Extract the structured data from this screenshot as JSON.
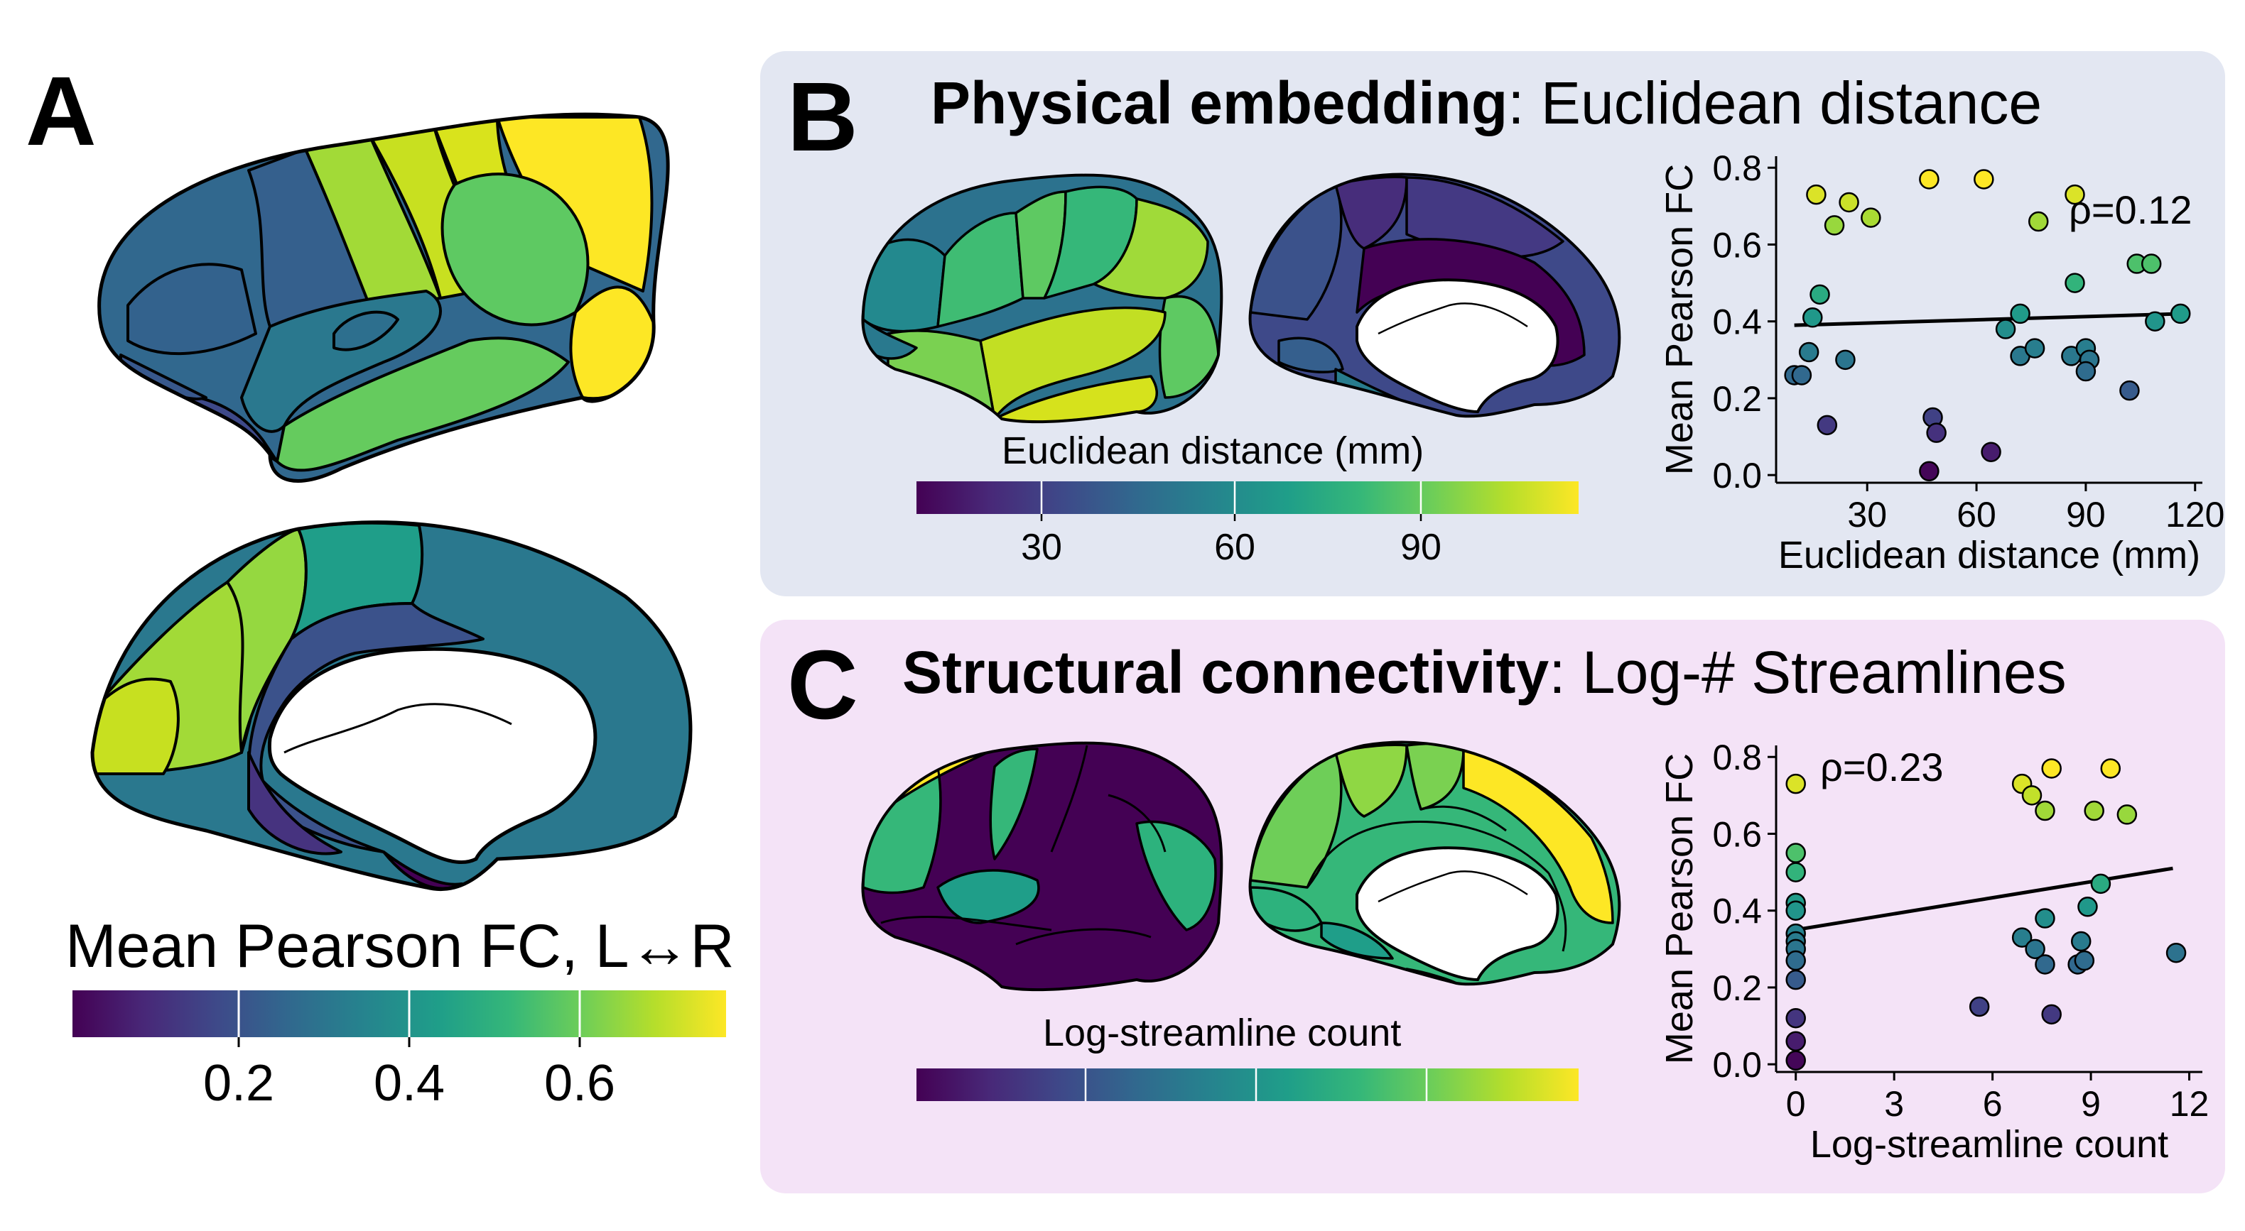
{
  "figure": {
    "panel_a": {
      "letter": "A",
      "colorbar_label": "Mean Pearson FC, L↔R",
      "colorbar_ticks": [
        "0.2",
        "0.4",
        "0.6"
      ]
    },
    "panel_b": {
      "letter": "B",
      "title_bold": "Physical embedding",
      "title_rest": ": Euclidean distance",
      "colorbar_label": "Euclidean distance (mm)",
      "colorbar_ticks": [
        "30",
        "60",
        "90"
      ]
    },
    "panel_c": {
      "letter": "C",
      "title_bold": "Structural connectivity",
      "title_rest": ": Log-# Streamlines",
      "colorbar_label": "Log-streamline count"
    },
    "colors": {
      "panel_b_bg": "#e3e7f2",
      "panel_c_bg": "#f4e3f7",
      "viridis": [
        "#440154",
        "#482878",
        "#3e4989",
        "#31688e",
        "#26828e",
        "#1f9e89",
        "#35b779",
        "#6ece58",
        "#b5de2b",
        "#fde725"
      ]
    }
  },
  "chart_data": [
    {
      "type": "scatter",
      "panel": "B",
      "xlabel": "Euclidean distance (mm)",
      "ylabel": "Mean Pearson FC",
      "annotation": "ρ=0.12",
      "xlim": [
        5,
        122
      ],
      "ylim": [
        -0.02,
        0.83
      ],
      "xticks": [
        "30",
        "60",
        "90",
        "120"
      ],
      "yticks": [
        "0.0",
        "0.2",
        "0.4",
        "0.6",
        "0.8"
      ],
      "fit_line": [
        [
          10,
          0.39
        ],
        [
          117,
          0.42
        ]
      ],
      "points": [
        [
          16,
          0.73
        ],
        [
          25,
          0.71
        ],
        [
          31,
          0.67
        ],
        [
          21,
          0.65
        ],
        [
          47,
          0.77
        ],
        [
          62,
          0.77
        ],
        [
          87,
          0.73
        ],
        [
          77,
          0.66
        ],
        [
          104,
          0.55
        ],
        [
          108,
          0.55
        ],
        [
          87,
          0.5
        ],
        [
          17,
          0.47
        ],
        [
          15,
          0.41
        ],
        [
          72,
          0.42
        ],
        [
          109,
          0.4
        ],
        [
          116,
          0.42
        ],
        [
          68,
          0.38
        ],
        [
          14,
          0.32
        ],
        [
          24,
          0.3
        ],
        [
          72,
          0.31
        ],
        [
          76,
          0.33
        ],
        [
          86,
          0.31
        ],
        [
          90,
          0.33
        ],
        [
          91,
          0.3
        ],
        [
          90,
          0.27
        ],
        [
          10,
          0.26
        ],
        [
          12,
          0.26
        ],
        [
          48,
          0.15
        ],
        [
          49,
          0.11
        ],
        [
          19,
          0.13
        ],
        [
          102,
          0.22
        ],
        [
          64,
          0.06
        ],
        [
          47,
          0.01
        ]
      ]
    },
    {
      "type": "scatter",
      "panel": "C",
      "xlabel": "Log-streamline count",
      "ylabel": "Mean Pearson FC",
      "annotation": "ρ=0.23",
      "xlim": [
        -0.6,
        12.4
      ],
      "ylim": [
        -0.02,
        0.83
      ],
      "xticks": [
        "0",
        "3",
        "6",
        "9",
        "12"
      ],
      "yticks": [
        "0.0",
        "0.2",
        "0.4",
        "0.6",
        "0.8"
      ],
      "fit_line": [
        [
          0,
          0.35
        ],
        [
          11.5,
          0.51
        ]
      ],
      "points": [
        [
          0,
          0.73
        ],
        [
          0,
          0.55
        ],
        [
          0,
          0.5
        ],
        [
          0,
          0.42
        ],
        [
          0,
          0.4
        ],
        [
          0,
          0.34
        ],
        [
          0,
          0.32
        ],
        [
          0,
          0.3
        ],
        [
          0,
          0.27
        ],
        [
          0,
          0.22
        ],
        [
          0,
          0.12
        ],
        [
          0,
          0.06
        ],
        [
          0,
          0.01
        ],
        [
          6.9,
          0.73
        ],
        [
          7.2,
          0.7
        ],
        [
          7.8,
          0.77
        ],
        [
          9.6,
          0.77
        ],
        [
          7.6,
          0.66
        ],
        [
          9.1,
          0.66
        ],
        [
          10.1,
          0.65
        ],
        [
          9.3,
          0.47
        ],
        [
          8.9,
          0.41
        ],
        [
          7.6,
          0.38
        ],
        [
          6.9,
          0.33
        ],
        [
          8.7,
          0.32
        ],
        [
          7.3,
          0.3
        ],
        [
          11.6,
          0.29
        ],
        [
          7.6,
          0.26
        ],
        [
          8.6,
          0.26
        ],
        [
          8.8,
          0.27
        ],
        [
          5.6,
          0.15
        ],
        [
          7.8,
          0.13
        ]
      ]
    }
  ]
}
